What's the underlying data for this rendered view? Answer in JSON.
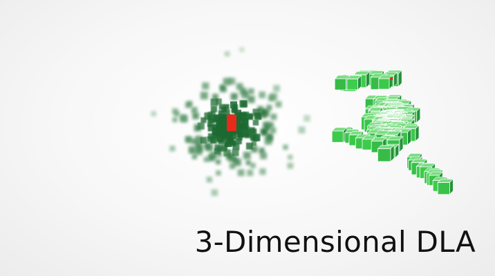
{
  "slide": {
    "caption": "3-Dimensional DLA"
  },
  "colors": {
    "background": "#f4f4f4",
    "seed": "#e8291c",
    "particle_light": "#9fd2a6",
    "particle_dark": "#1f6b33",
    "cluster_front": "#3fcf4d",
    "cluster_shade": "#23913a",
    "caption": "#111111"
  },
  "views": {
    "left": {
      "description_name": "diffuse-projection",
      "glyph_color": "#2e8b45"
    },
    "right": {
      "description_name": "rendered-cube-cluster",
      "glyph_color": "#41d14f"
    }
  }
}
